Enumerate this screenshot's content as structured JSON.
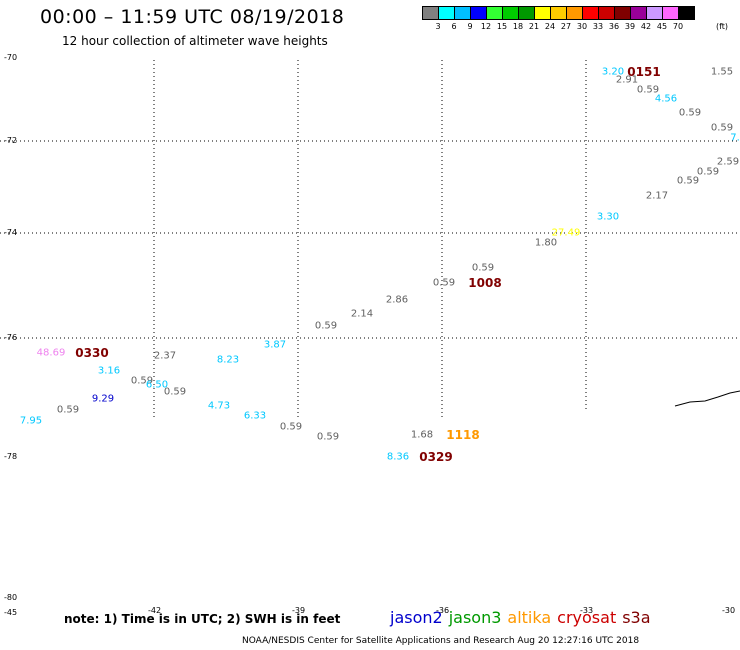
{
  "header": {
    "title": "00:00 – 11:59 UTC 08/19/2018",
    "subtitle": "12 hour collection of altimeter wave heights"
  },
  "legend": {
    "unit": "(ft)",
    "colors": [
      "#808080",
      "#00ffff",
      "#00bfff",
      "#0000ff",
      "#33ff33",
      "#00cc00",
      "#009900",
      "#ffff00",
      "#ffcc00",
      "#ff9900",
      "#ff0000",
      "#cc0000",
      "#800000",
      "#990099",
      "#cc99ff",
      "#ff66ff",
      "#000000"
    ],
    "labels": [
      "3",
      "6",
      "9",
      "12",
      "15",
      "18",
      "21",
      "24",
      "27",
      "30",
      "33",
      "36",
      "39",
      "42",
      "45",
      "70"
    ]
  },
  "axes": {
    "lat_labels": [
      "-70",
      "-72",
      "-74",
      "-76",
      "-78",
      "-80"
    ],
    "lon_labels": [
      "-45",
      "-42",
      "-39",
      "-36",
      "-33",
      "-30"
    ]
  },
  "measurements": [
    {
      "text": "3.20",
      "color": "#00c8ff"
    },
    {
      "text": "0151",
      "color": "#800000",
      "big": true
    },
    {
      "text": "1.55",
      "color": "#606060"
    },
    {
      "text": "2.91",
      "color": "#606060"
    },
    {
      "text": "0.59",
      "color": "#606060"
    },
    {
      "text": "4.56",
      "color": "#00c8ff"
    },
    {
      "text": "0.59",
      "color": "#606060"
    },
    {
      "text": "0.59",
      "color": "#606060"
    },
    {
      "text": "7.",
      "color": "#00c8ff"
    },
    {
      "text": "2.59",
      "color": "#606060"
    },
    {
      "text": "0.59",
      "color": "#606060"
    },
    {
      "text": "0.59",
      "color": "#606060"
    },
    {
      "text": "2.17",
      "color": "#606060"
    },
    {
      "text": "3.30",
      "color": "#00c8ff"
    },
    {
      "text": "27.49",
      "color": "#ffff00"
    },
    {
      "text": "1.80",
      "color": "#606060"
    },
    {
      "text": "0.59",
      "color": "#606060"
    },
    {
      "text": "0.59",
      "color": "#606060"
    },
    {
      "text": "1008",
      "color": "#800000",
      "big": true
    },
    {
      "text": "2.86",
      "color": "#606060"
    },
    {
      "text": "2.14",
      "color": "#606060"
    },
    {
      "text": "0.59",
      "color": "#606060"
    },
    {
      "text": "3.87",
      "color": "#00c8ff"
    },
    {
      "text": "48.69",
      "color": "#ee82ee"
    },
    {
      "text": "0330",
      "color": "#800000",
      "big": true
    },
    {
      "text": "2.37",
      "color": "#606060"
    },
    {
      "text": "8.23",
      "color": "#00c8ff"
    },
    {
      "text": "3.16",
      "color": "#00c8ff"
    },
    {
      "text": "0.59",
      "color": "#606060"
    },
    {
      "text": "6.50",
      "color": "#00c8ff"
    },
    {
      "text": "0.59",
      "color": "#606060"
    },
    {
      "text": "9.29",
      "color": "#0000cc"
    },
    {
      "text": "0.59",
      "color": "#606060"
    },
    {
      "text": "7.95",
      "color": "#00c8ff"
    },
    {
      "text": "4.73",
      "color": "#00c8ff"
    },
    {
      "text": "6.33",
      "color": "#00c8ff"
    },
    {
      "text": "0.59",
      "color": "#606060"
    },
    {
      "text": "0.59",
      "color": "#606060"
    },
    {
      "text": "1.68",
      "color": "#606060"
    },
    {
      "text": "1118",
      "color": "#ff9900",
      "big": true
    },
    {
      "text": "8.36",
      "color": "#00c8ff"
    },
    {
      "text": "0329",
      "color": "#800000",
      "big": true
    }
  ],
  "footer": {
    "note": "note: 1) Time is in UTC; 2) SWH is in feet",
    "satellites": [
      {
        "name": "jason2",
        "color": "#0000cc"
      },
      {
        "name": "jason3",
        "color": "#009900"
      },
      {
        "name": "altika",
        "color": "#ff9900"
      },
      {
        "name": "cryosat",
        "color": "#cc0000"
      },
      {
        "name": "s3a",
        "color": "#800000"
      }
    ],
    "credit": "NOAA/NESDIS Center for Satellite Applications and Research     Aug 20 12:27:16 UTC 2018"
  }
}
